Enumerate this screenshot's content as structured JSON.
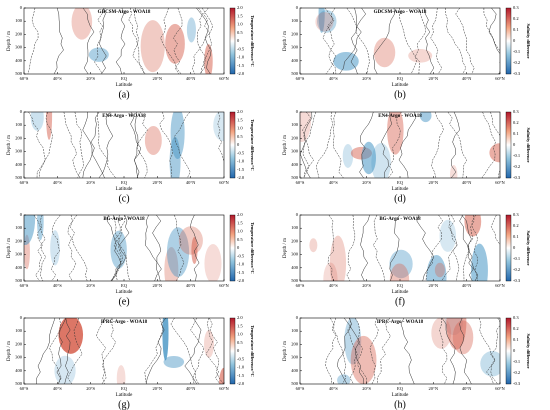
{
  "figure": {
    "xticks": [
      "60°S",
      "40°S",
      "20°S",
      "EQ",
      "20°N",
      "40°N",
      "60°N"
    ],
    "yticks": [
      "0",
      "100",
      "200",
      "300",
      "400",
      "500"
    ],
    "xlabel": "Latitude",
    "ylabel": "Depth / m",
    "temperature": {
      "cbar_label": "Temperature difference/°C",
      "cbar_ticks": [
        "2.0",
        "1.5",
        "1.0",
        "0.5",
        "0",
        "-0.5",
        "-1.0",
        "-1.5",
        "-2.0"
      ]
    },
    "salinity": {
      "cbar_label": "Salinity difference",
      "cbar_ticks": [
        "0.3",
        "0.2",
        "0.1",
        "0",
        "-0.1",
        "-0.2",
        "-0.3"
      ]
    },
    "panels": [
      {
        "label": "(a)",
        "title": "GDCSM-Argo - WOA18",
        "kind": "temperature"
      },
      {
        "label": "(b)",
        "title": "GDCSM-Argo - WOA18",
        "kind": "salinity"
      },
      {
        "label": "(c)",
        "title": "EN4-Argo - WOA18",
        "kind": "temperature"
      },
      {
        "label": "(d)",
        "title": "EN4-Argo - WOA18",
        "kind": "salinity"
      },
      {
        "label": "(e)",
        "title": "BG-Argo - WOA18",
        "kind": "temperature"
      },
      {
        "label": "(f)",
        "title": "BG-Argo - WOA18",
        "kind": "salinity"
      },
      {
        "label": "(g)",
        "title": "IPRC-Argo - WOA18",
        "kind": "temperature"
      },
      {
        "label": "(h)",
        "title": "IPRC-Argo - WOA18",
        "kind": "salinity"
      }
    ]
  }
}
